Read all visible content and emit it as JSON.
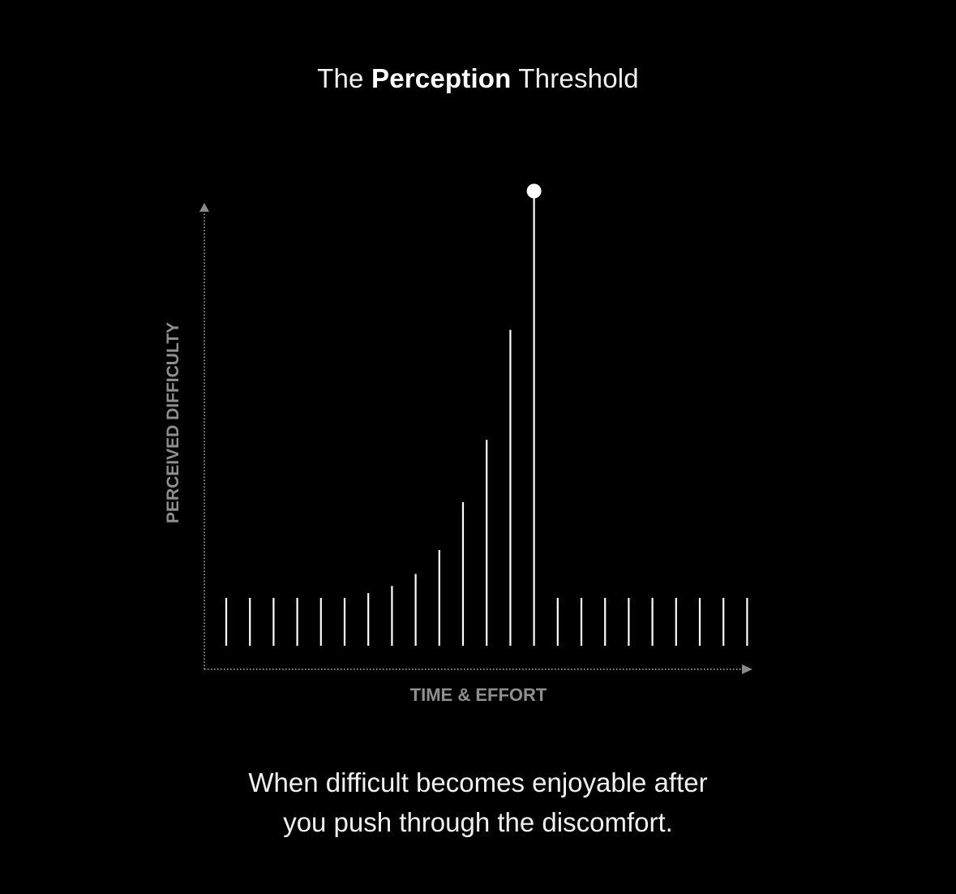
{
  "title": {
    "prefix": "The ",
    "emphasis": "Perception",
    "suffix": " Threshold"
  },
  "caption": {
    "line1": "When difficult becomes enjoyable after",
    "line2": "you push through the discomfort."
  },
  "colors": {
    "background": "#000000",
    "bars": "#ffffff",
    "axes": "#8a8a8a",
    "axis_labels": "#8f8f8f"
  },
  "chart_data": {
    "type": "bar",
    "xlabel": "TIME & EFFORT",
    "ylabel": "PERCEIVED DIFFICULTY",
    "categories": [
      "",
      "",
      "",
      "",
      "",
      "",
      "",
      "",
      "",
      "",
      "",
      "",
      "",
      "",
      "",
      "",
      "",
      "",
      "",
      "",
      "",
      "",
      ""
    ],
    "values": [
      1,
      1,
      1,
      1,
      1,
      1,
      1.1,
      1.25,
      1.5,
      2.0,
      3.0,
      4.3,
      6.6,
      9.5,
      1,
      1,
      1,
      1,
      1,
      1,
      1,
      1,
      1
    ],
    "ylim": [
      0,
      10
    ],
    "highlight_index": 13,
    "highlight_marker": "circle",
    "grid": false,
    "axis_style": "dotted-with-arrows"
  }
}
